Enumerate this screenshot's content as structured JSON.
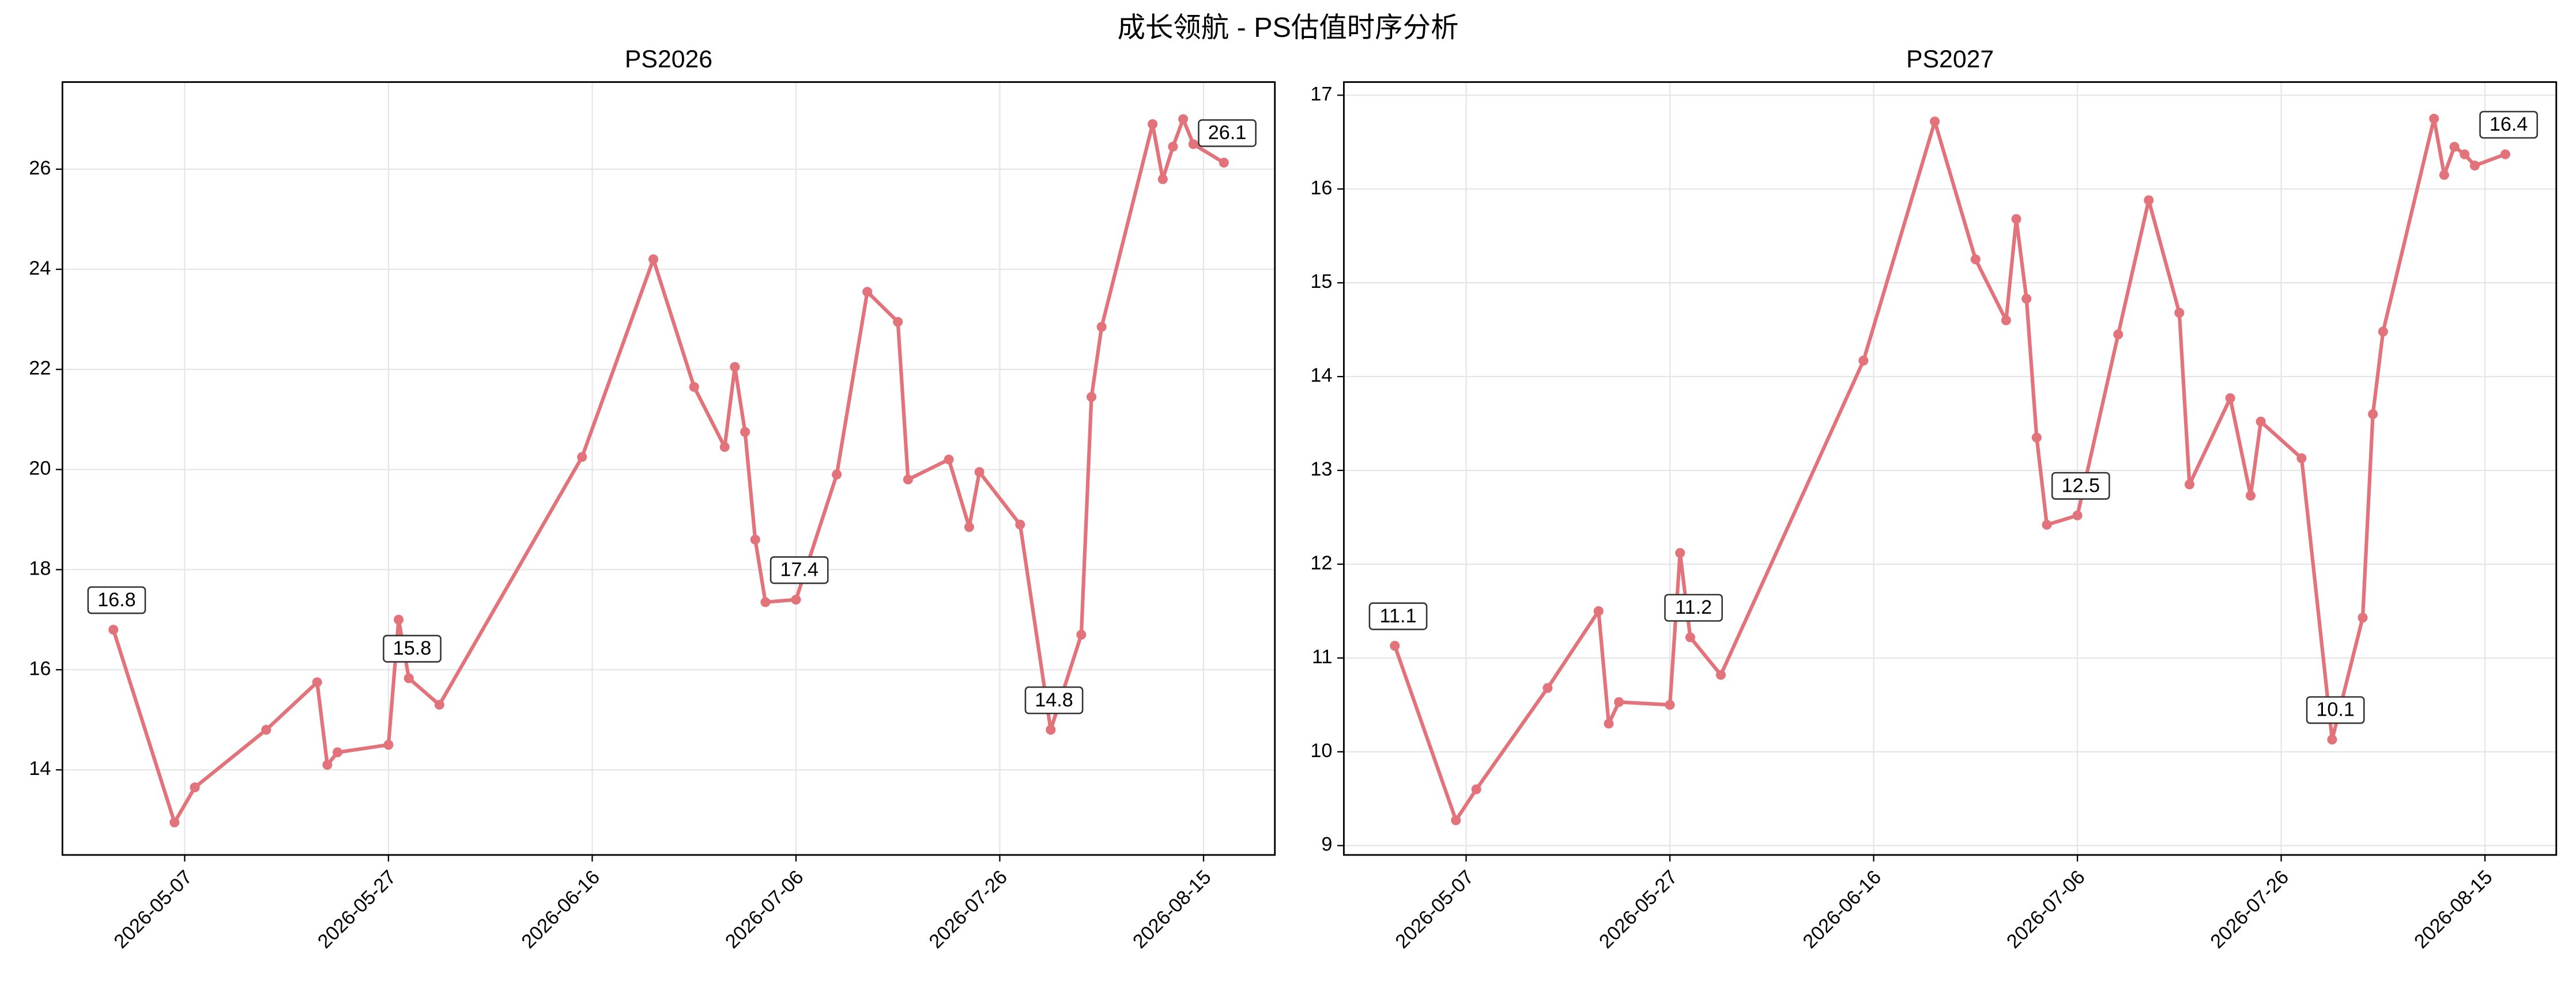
{
  "title": "成长领航 - PS估值时序分析",
  "chart_data": [
    {
      "type": "line",
      "title": "PS2026",
      "color": "#e3737a",
      "grid": true,
      "x": [
        "2026-04-30",
        "2026-05-06",
        "2026-05-08",
        "2026-05-15",
        "2026-05-20",
        "2026-05-21",
        "2026-05-22",
        "2026-05-27",
        "2026-05-28",
        "2026-05-29",
        "2026-06-01",
        "2026-06-15",
        "2026-06-22",
        "2026-06-26",
        "2026-06-29",
        "2026-06-30",
        "2026-07-01",
        "2026-07-02",
        "2026-07-03",
        "2026-07-06",
        "2026-07-10",
        "2026-07-13",
        "2026-07-16",
        "2026-07-17",
        "2026-07-21",
        "2026-07-23",
        "2026-07-24",
        "2026-07-28",
        "2026-07-31",
        "2026-08-03",
        "2026-08-04",
        "2026-08-05",
        "2026-08-10",
        "2026-08-11",
        "2026-08-12",
        "2026-08-13",
        "2026-08-14",
        "2026-08-17"
      ],
      "values": [
        16.8,
        12.95,
        13.65,
        14.8,
        15.75,
        14.1,
        14.35,
        14.5,
        17.0,
        15.83,
        15.3,
        20.25,
        24.2,
        21.65,
        20.45,
        22.05,
        20.75,
        18.6,
        17.35,
        17.4,
        19.9,
        23.55,
        22.95,
        19.8,
        20.2,
        18.85,
        19.95,
        18.9,
        14.8,
        16.7,
        21.45,
        22.85,
        26.9,
        25.8,
        26.45,
        27.0,
        26.5,
        26.13
      ],
      "value_labels": [
        "16.8",
        null,
        null,
        null,
        null,
        null,
        null,
        null,
        null,
        "15.8",
        null,
        null,
        null,
        null,
        null,
        null,
        null,
        null,
        null,
        "17.4",
        null,
        null,
        null,
        null,
        null,
        null,
        null,
        null,
        "14.8",
        null,
        null,
        null,
        null,
        null,
        null,
        null,
        null,
        "26.1"
      ],
      "xlim": [
        "2026-04-25",
        "2026-08-22"
      ],
      "xticks": [
        "2026-05-07",
        "2026-05-27",
        "2026-06-16",
        "2026-07-06",
        "2026-07-26",
        "2026-08-15"
      ],
      "ylim": [
        12.3,
        27.74
      ],
      "yticks": [
        14,
        16,
        18,
        20,
        22,
        24,
        26
      ]
    },
    {
      "type": "line",
      "title": "PS2027",
      "color": "#e3737a",
      "grid": true,
      "x": [
        "2026-04-30",
        "2026-05-06",
        "2026-05-08",
        "2026-05-15",
        "2026-05-20",
        "2026-05-21",
        "2026-05-22",
        "2026-05-27",
        "2026-05-28",
        "2026-05-29",
        "2026-06-01",
        "2026-06-15",
        "2026-06-22",
        "2026-06-26",
        "2026-06-29",
        "2026-06-30",
        "2026-07-01",
        "2026-07-02",
        "2026-07-03",
        "2026-07-06",
        "2026-07-10",
        "2026-07-13",
        "2026-07-16",
        "2026-07-17",
        "2026-07-21",
        "2026-07-23",
        "2026-07-24",
        "2026-07-28",
        "2026-07-31",
        "2026-08-03",
        "2026-08-04",
        "2026-08-05",
        "2026-08-10",
        "2026-08-11",
        "2026-08-12",
        "2026-08-13",
        "2026-08-14",
        "2026-08-17"
      ],
      "values": [
        11.13,
        9.27,
        9.6,
        10.68,
        11.5,
        10.3,
        10.53,
        10.5,
        12.12,
        11.22,
        10.82,
        14.17,
        16.72,
        15.25,
        14.6,
        15.68,
        14.83,
        13.35,
        12.42,
        12.52,
        14.45,
        15.88,
        14.68,
        12.85,
        13.77,
        12.73,
        13.52,
        13.13,
        10.13,
        11.43,
        13.6,
        14.48,
        16.75,
        16.15,
        16.45,
        16.37,
        16.25,
        16.37
      ],
      "value_labels": [
        "11.1",
        null,
        null,
        null,
        null,
        null,
        null,
        null,
        null,
        "11.2",
        null,
        null,
        null,
        null,
        null,
        null,
        null,
        null,
        null,
        "12.5",
        null,
        null,
        null,
        null,
        null,
        null,
        null,
        null,
        "10.1",
        null,
        null,
        null,
        null,
        null,
        null,
        null,
        null,
        "16.4"
      ],
      "xlim": [
        "2026-04-25",
        "2026-08-22"
      ],
      "xticks": [
        "2026-05-07",
        "2026-05-27",
        "2026-06-16",
        "2026-07-06",
        "2026-07-26",
        "2026-08-15"
      ],
      "ylim": [
        8.9,
        17.14
      ],
      "yticks": [
        9,
        10,
        11,
        12,
        13,
        14,
        15,
        16,
        17
      ]
    }
  ]
}
